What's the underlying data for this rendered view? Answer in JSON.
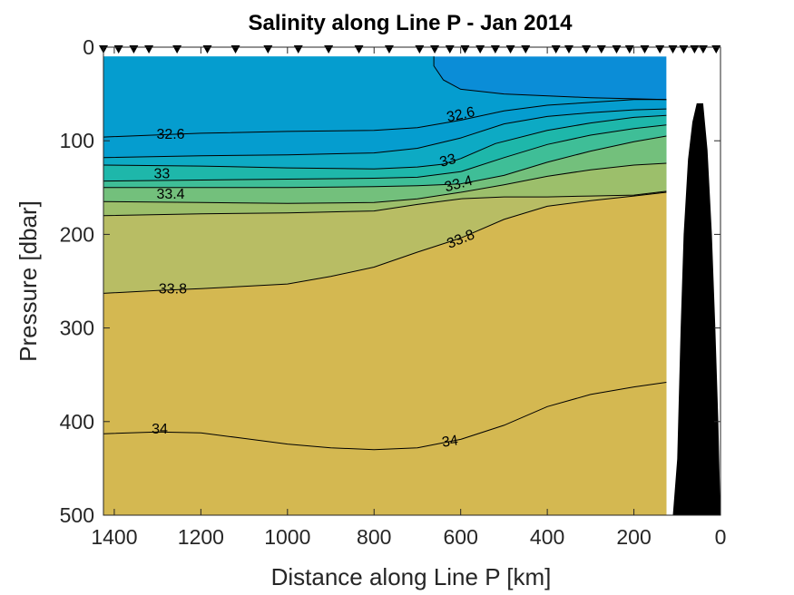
{
  "chart_data": {
    "type": "contour",
    "title": "Salinity along Line P - Jan 2014",
    "xlabel": "Distance along Line P [km]",
    "ylabel": "Pressure [dbar]",
    "xlim": [
      1425,
      0
    ],
    "ylim": [
      0,
      500
    ],
    "x_reversed": true,
    "y_reversed": true,
    "xticks": [
      1400,
      1200,
      1000,
      800,
      600,
      400,
      200,
      0
    ],
    "yticks": [
      0,
      100,
      200,
      300,
      400,
      500
    ],
    "grid": false,
    "data_extent_x": [
      1425,
      125
    ],
    "data_extent_y": [
      10,
      500
    ],
    "stations_km": [
      1425,
      1390,
      1355,
      1320,
      1255,
      1185,
      1120,
      1045,
      975,
      905,
      835,
      765,
      695,
      660,
      625,
      590,
      555,
      520,
      485,
      450,
      380,
      350,
      310,
      275,
      240,
      210,
      175,
      140,
      110,
      85,
      60,
      40,
      10
    ],
    "levels": [
      32.6,
      32.8,
      33.0,
      33.2,
      33.4,
      33.6,
      33.8,
      34.0
    ],
    "fill_colors": [
      "#0b8dd7",
      "#059dcf",
      "#0daac4",
      "#1eb7aa",
      "#3fbe97",
      "#73c07c",
      "#9cbf6b",
      "#b8bd64",
      "#d4b851"
    ],
    "contours": [
      {
        "level": 32.6,
        "label": "32.6",
        "points": [
          [
            1425,
            96
          ],
          [
            1200,
            92
          ],
          [
            1000,
            90
          ],
          [
            800,
            89
          ],
          [
            700,
            86
          ],
          [
            600,
            78
          ],
          [
            500,
            68
          ],
          [
            400,
            62
          ],
          [
            300,
            59
          ],
          [
            200,
            56
          ],
          [
            125,
            56
          ]
        ]
      },
      {
        "level": 32.8,
        "label": "",
        "points": [
          [
            1425,
            118
          ],
          [
            1200,
            116
          ],
          [
            1000,
            115
          ],
          [
            800,
            113
          ],
          [
            700,
            108
          ],
          [
            600,
            97
          ],
          [
            500,
            82
          ],
          [
            400,
            74
          ],
          [
            300,
            70
          ],
          [
            200,
            67
          ],
          [
            125,
            66
          ]
        ]
      },
      {
        "level": 33.0,
        "label": "33",
        "points": [
          [
            1425,
            126
          ],
          [
            1200,
            127
          ],
          [
            1000,
            129
          ],
          [
            800,
            130
          ],
          [
            700,
            128
          ],
          [
            640,
            125
          ],
          [
            600,
            119
          ],
          [
            520,
            103
          ],
          [
            400,
            89
          ],
          [
            300,
            81
          ],
          [
            200,
            75
          ],
          [
            125,
            73
          ]
        ]
      },
      {
        "level": 33.2,
        "label": "",
        "points": [
          [
            1425,
            143
          ],
          [
            1200,
            142
          ],
          [
            1000,
            141
          ],
          [
            800,
            140
          ],
          [
            700,
            139
          ],
          [
            600,
            133
          ],
          [
            500,
            118
          ],
          [
            400,
            104
          ],
          [
            300,
            94
          ],
          [
            200,
            87
          ],
          [
            125,
            83
          ]
        ]
      },
      {
        "level": 33.4,
        "label": "33.4",
        "points": [
          [
            1425,
            150
          ],
          [
            1200,
            150
          ],
          [
            1000,
            150
          ],
          [
            800,
            149
          ],
          [
            700,
            148
          ],
          [
            600,
            146
          ],
          [
            500,
            137
          ],
          [
            400,
            123
          ],
          [
            300,
            111
          ],
          [
            200,
            101
          ],
          [
            125,
            95
          ]
        ]
      },
      {
        "level": 33.6,
        "label": "",
        "points": [
          [
            1425,
            165
          ],
          [
            1200,
            166
          ],
          [
            1000,
            167
          ],
          [
            800,
            166
          ],
          [
            700,
            162
          ],
          [
            600,
            155
          ],
          [
            500,
            147
          ],
          [
            400,
            138
          ],
          [
            300,
            131
          ],
          [
            200,
            126
          ],
          [
            125,
            124
          ]
        ]
      },
      {
        "level": 33.8,
        "label": "33.8",
        "points": [
          [
            1425,
            180
          ],
          [
            1200,
            178
          ],
          [
            1000,
            177
          ],
          [
            800,
            175
          ],
          [
            700,
            168
          ],
          [
            600,
            162
          ],
          [
            500,
            160
          ],
          [
            400,
            160
          ],
          [
            300,
            159
          ],
          [
            200,
            158
          ],
          [
            125,
            154
          ]
        ]
      },
      {
        "level": 33.85,
        "label": "33.8",
        "points": [
          [
            1425,
            263
          ],
          [
            1300,
            260
          ],
          [
            1200,
            258
          ],
          [
            1000,
            253
          ],
          [
            900,
            245
          ],
          [
            800,
            235
          ],
          [
            700,
            219
          ],
          [
            600,
            204
          ],
          [
            500,
            184
          ],
          [
            400,
            170
          ],
          [
            300,
            164
          ],
          [
            200,
            159
          ],
          [
            125,
            155
          ]
        ]
      },
      {
        "level": 34.0,
        "label": "34",
        "points": [
          [
            1425,
            413
          ],
          [
            1300,
            411
          ],
          [
            1200,
            412
          ],
          [
            1100,
            418
          ],
          [
            1000,
            424
          ],
          [
            900,
            428
          ],
          [
            800,
            430
          ],
          [
            700,
            428
          ],
          [
            600,
            419
          ],
          [
            500,
            404
          ],
          [
            400,
            384
          ],
          [
            300,
            371
          ],
          [
            200,
            363
          ],
          [
            125,
            358
          ]
        ]
      }
    ],
    "labels": [
      {
        "text": "32.6",
        "x": 1270,
        "y": 93,
        "angle": 0
      },
      {
        "text": "32.6",
        "x": 600,
        "y": 72,
        "angle": -12
      },
      {
        "text": "33",
        "x": 1290,
        "y": 135,
        "angle": 0
      },
      {
        "text": "33",
        "x": 630,
        "y": 121,
        "angle": -15
      },
      {
        "text": "33.4",
        "x": 1270,
        "y": 157,
        "angle": 0
      },
      {
        "text": "33.4",
        "x": 605,
        "y": 146,
        "angle": -15
      },
      {
        "text": "33.8",
        "x": 1265,
        "y": 258,
        "angle": 0
      },
      {
        "text": "33.8",
        "x": 600,
        "y": 205,
        "angle": -22
      },
      {
        "text": "34",
        "x": 1295,
        "y": 408,
        "angle": 0
      },
      {
        "text": "34",
        "x": 625,
        "y": 421,
        "angle": -8
      }
    ],
    "bathymetry": [
      [
        110,
        500
      ],
      [
        100,
        440
      ],
      [
        92,
        300
      ],
      [
        85,
        200
      ],
      [
        75,
        120
      ],
      [
        65,
        80
      ],
      [
        55,
        60
      ],
      [
        40,
        60
      ],
      [
        30,
        110
      ],
      [
        20,
        200
      ],
      [
        12,
        300
      ],
      [
        5,
        400
      ],
      [
        0,
        500
      ]
    ]
  }
}
